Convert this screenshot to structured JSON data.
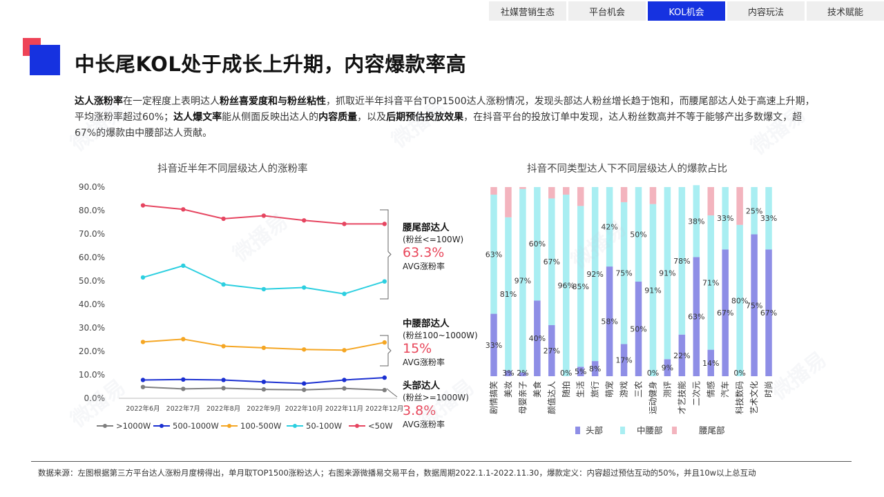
{
  "nav": {
    "tabs": [
      {
        "label": "社媒营销生态",
        "active": false
      },
      {
        "label": "平台机会",
        "active": false
      },
      {
        "label": "KOL机会",
        "active": true
      },
      {
        "label": "内容玩法",
        "active": false
      },
      {
        "label": "技术赋能",
        "active": false
      }
    ]
  },
  "page": {
    "title": "中长尾KOL处于成长上升期，内容爆款率高",
    "desc": [
      {
        "t": "达人涨粉率",
        "b": true
      },
      {
        "t": "在一定程度上表明达人",
        "b": false
      },
      {
        "t": "粉丝喜爱度和与粉丝粘性",
        "b": true
      },
      {
        "t": "，抓取近半年抖音平台TOP1500达人涨粉情况，发现头部达人粉丝增长趋于饱和，而腰尾部达人处于高速上升期，平均涨粉率超过60%；",
        "b": false
      },
      {
        "t": "达人爆文率",
        "b": true
      },
      {
        "t": "能从侧面反映出达人的",
        "b": false
      },
      {
        "t": "内容质量",
        "b": true
      },
      {
        "t": "，以及",
        "b": false
      },
      {
        "t": "后期预估投放效果",
        "b": true
      },
      {
        "t": "，在抖音平台的投放订单中发现，达人粉丝数高并不等于能够产出多数爆文，超67%的爆款由中腰部达人贡献。",
        "b": false
      }
    ],
    "footer": "数据来源：左图根据第三方平台达人涨粉月度榜得出，单月取TOP1500涨粉达人；右图来源微播易交易平台，数据周期2022.1.1-2022.11.30，爆款定义：内容超过预估互动的50%，并且10w以上总互动",
    "watermark": "微播易"
  },
  "annotations": [
    {
      "head": "腰尾部达人",
      "sub": "(粉丝<=100W)",
      "value": "63.3%",
      "label": "AVG涨粉率"
    },
    {
      "head": "中腰部达人",
      "sub": "(粉丝100~1000W)",
      "value": "15%",
      "label": "AVG涨粉率"
    },
    {
      "head": "头部达人",
      "sub": "(粉丝>=1000W)",
      "value": "3.8%",
      "label": "AVG涨粉率"
    }
  ],
  "chart_data": [
    {
      "type": "line",
      "title": "抖音近半年不同层级达人的涨粉率",
      "categories": [
        "2022年6月",
        "2022年7月",
        "2022年8月",
        "2022年9月",
        "2022年10月",
        "2022年11月",
        "2022年12月"
      ],
      "ylim": [
        0,
        90
      ],
      "yticks": [
        "0.0%",
        "10.0%",
        "20.0%",
        "30.0%",
        "40.0%",
        "50.0%",
        "60.0%",
        "70.0%",
        "80.0%",
        "90.0%"
      ],
      "series": [
        {
          "name": ">1000W",
          "color": "#7f7f7f",
          "values": [
            4.8,
            4.0,
            4.3,
            3.8,
            3.6,
            4.2,
            3.5
          ]
        },
        {
          "name": "500-1000W",
          "color": "#1a2fd1",
          "values": [
            7.8,
            8.0,
            7.8,
            7.0,
            6.3,
            7.8,
            8.8
          ]
        },
        {
          "name": "100-500W",
          "color": "#f5a623",
          "values": [
            24.0,
            25.2,
            22.2,
            21.5,
            20.8,
            20.5,
            23.8
          ]
        },
        {
          "name": "50-100W",
          "color": "#2ccfe0",
          "values": [
            51.5,
            56.5,
            48.5,
            46.5,
            47.2,
            44.5,
            49.8
          ]
        },
        {
          "name": "<50W",
          "color": "#e64560",
          "values": [
            82.2,
            80.5,
            76.5,
            77.8,
            75.8,
            74.3,
            74.3
          ]
        }
      ]
    },
    {
      "type": "bar",
      "stacked": true,
      "title": "抖音不同类型达人下不同层级达人的爆款占比",
      "categories": [
        "剧情搞笑",
        "美妆",
        "母婴亲子",
        "美食",
        "颜值达人",
        "随拍",
        "生活",
        "旅行",
        "萌宠",
        "游戏",
        "三农",
        "运动健身",
        "测评",
        "才艺技能",
        "二次元",
        "情感",
        "汽车",
        "科技数码",
        "艺术文化",
        "时尚"
      ],
      "series": [
        {
          "name": "头部",
          "color": "#8e8ee6",
          "values": [
            33,
            3,
            2,
            40,
            27,
            0,
            5,
            8,
            58,
            17,
            50,
            0,
            9,
            22,
            63,
            14,
            67,
            0,
            75,
            67
          ]
        },
        {
          "name": "中腰部",
          "color": "#a9eef2",
          "values": [
            63,
            81,
            97,
            60,
            67,
            96,
            85,
            92,
            42,
            75,
            50,
            91,
            91,
            78,
            38,
            71,
            33,
            80,
            25,
            33
          ]
        },
        {
          "name": "腰尾部",
          "color": "#f3b4be",
          "values": [
            4,
            16,
            1,
            0,
            6,
            4,
            10,
            0,
            0,
            8,
            0,
            9,
            0,
            0,
            0,
            15,
            0,
            20,
            0,
            0
          ]
        }
      ],
      "labels": {
        "头部": [
          "33%",
          "3%",
          "2%",
          "40%",
          "27%",
          "0%",
          "5%",
          "8%",
          "58%",
          "17%",
          "50%",
          "0%",
          "9%",
          "22%",
          "63%",
          "14%",
          "67%",
          "0%",
          "75%",
          "67%"
        ],
        "中腰部": [
          "63%",
          "81%",
          "97%",
          "60%",
          "67%",
          "96%",
          "85%",
          "92%",
          "42%",
          "75%",
          "50%",
          "91%",
          "91%",
          "78%",
          "38%",
          "71%",
          "33%",
          "80%",
          "25%",
          "33%"
        ]
      }
    }
  ]
}
